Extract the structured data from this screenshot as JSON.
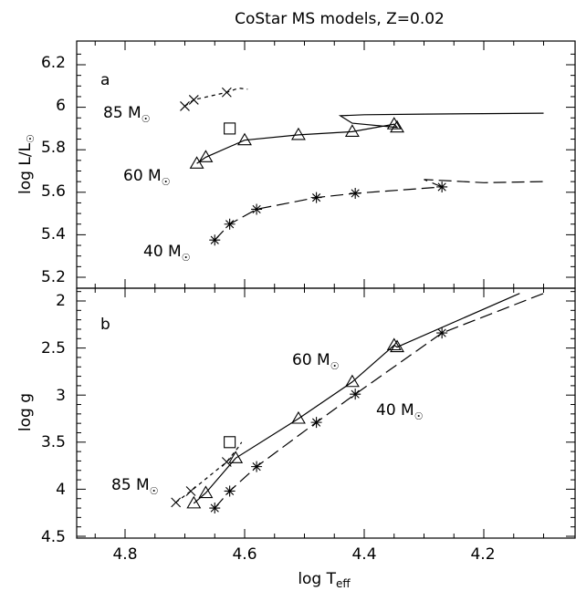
{
  "chart_data": [
    {
      "panel_letter": "a",
      "type": "line",
      "title": "CoStar MS models, Z=0.02",
      "xlabel": "log T_eff",
      "ylabel": "log L/L☉",
      "xlim": [
        4.85,
        4.1
      ],
      "ylim": [
        5.17,
        6.29
      ],
      "yticks": [
        "5.2",
        "5.4",
        "5.6",
        "5.8",
        "6",
        "6.2"
      ],
      "series": [
        {
          "name": "85 M☉",
          "linestyle": "short-dash",
          "marker": "x",
          "x": [
            4.7,
            4.685,
            4.63,
            4.61,
            4.595
          ],
          "y": [
            6.005,
            6.035,
            6.07,
            6.09,
            6.085
          ],
          "marked": [
            0,
            1,
            2
          ]
        },
        {
          "name": "60 M☉",
          "linestyle": "solid",
          "marker": "triangle",
          "x": [
            4.68,
            4.665,
            4.6,
            4.51,
            4.42,
            4.35,
            4.345,
            4.42,
            4.44,
            4.4,
            4.3,
            4.2,
            4.1
          ],
          "y": [
            5.735,
            5.765,
            5.845,
            5.87,
            5.885,
            5.92,
            5.905,
            5.925,
            5.96,
            5.965,
            5.968,
            5.97,
            5.972
          ],
          "marked": [
            0,
            1,
            2,
            3,
            4,
            5,
            6
          ]
        },
        {
          "name": "40 M☉",
          "linestyle": "long-dash",
          "marker": "asterisk",
          "x": [
            4.65,
            4.625,
            4.58,
            4.48,
            4.415,
            4.27,
            4.3,
            4.2,
            4.1
          ],
          "y": [
            5.375,
            5.45,
            5.52,
            5.575,
            5.595,
            5.625,
            5.66,
            5.645,
            5.65
          ],
          "marked": [
            0,
            1,
            2,
            3,
            4,
            5
          ]
        }
      ],
      "square": {
        "x": 4.625,
        "y": 5.9
      }
    },
    {
      "panel_letter": "b",
      "type": "line",
      "xlabel": "log T_eff",
      "ylabel": "log g",
      "xlim": [
        4.85,
        4.1
      ],
      "ylim": [
        4.5,
        1.9
      ],
      "yticks": [
        "2",
        "2.5",
        "3",
        "3.5",
        "4",
        "4.5"
      ],
      "xticks": [
        "4.8",
        "4.6",
        "4.4",
        "4.2"
      ],
      "series": [
        {
          "name": "85 M☉",
          "linestyle": "short-dash",
          "marker": "x",
          "x": [
            4.715,
            4.69,
            4.63,
            4.61,
            4.605
          ],
          "y": [
            4.14,
            4.02,
            3.71,
            3.55,
            3.5
          ],
          "marked": [
            0,
            1,
            2
          ]
        },
        {
          "name": "60 M☉",
          "linestyle": "solid",
          "marker": "triangle",
          "x": [
            4.685,
            4.665,
            4.615,
            4.51,
            4.42,
            4.35,
            4.345,
            4.14
          ],
          "y": [
            4.15,
            4.04,
            3.67,
            3.25,
            2.86,
            2.47,
            2.49,
            1.92
          ],
          "marked": [
            0,
            1,
            2,
            3,
            4,
            5,
            6
          ]
        },
        {
          "name": "40 M☉",
          "linestyle": "long-dash",
          "marker": "asterisk",
          "x": [
            4.65,
            4.625,
            4.58,
            4.48,
            4.415,
            4.27,
            4.1
          ],
          "y": [
            4.2,
            4.02,
            3.76,
            3.29,
            2.99,
            2.34,
            1.92
          ],
          "marked": [
            0,
            1,
            2,
            3,
            4,
            5
          ]
        }
      ],
      "square": {
        "x": 4.625,
        "y": 3.5
      }
    }
  ],
  "labels": {
    "title": "CoStar MS models, Z=0.02",
    "panel_a": "a",
    "panel_b": "b",
    "ylabel_top_main": "log L/L",
    "ylabel_top_sub": "☉",
    "ylabel_bottom": "log g",
    "xlabel_main": "log T",
    "xlabel_sub": "eff",
    "a_85": "85 M",
    "a_60": "60 M",
    "a_40": "40 M",
    "b_85": "85 M",
    "b_60": "60 M",
    "b_40": "40 M",
    "sun": "☉"
  }
}
